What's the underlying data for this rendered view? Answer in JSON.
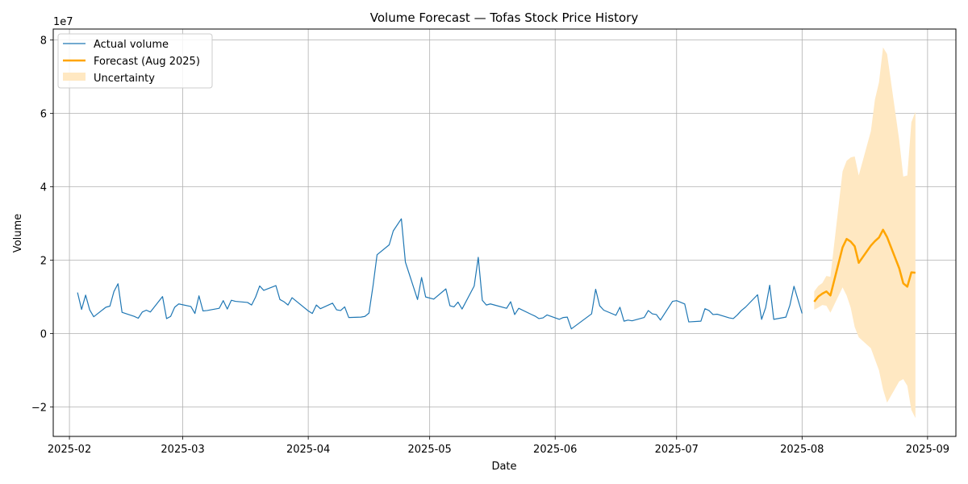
{
  "chart_data": {
    "type": "line",
    "title": "Volume Forecast — Tofas Stock Price History",
    "xlabel": "Date",
    "ylabel": "Volume",
    "y_multiplier_label": "1e7",
    "x_tick_labels": [
      "2025-02",
      "2025-03",
      "2025-04",
      "2025-05",
      "2025-06",
      "2025-07",
      "2025-08",
      "2025-09"
    ],
    "x_tick_dates": [
      "2025-02-01",
      "2025-03-01",
      "2025-04-01",
      "2025-05-01",
      "2025-06-01",
      "2025-07-01",
      "2025-08-01",
      "2025-09-01"
    ],
    "y_tick_labels": [
      "−2",
      "0",
      "2",
      "4",
      "6",
      "8"
    ],
    "y_tick_values": [
      -2,
      0,
      2,
      4,
      6,
      8
    ],
    "xlim": [
      "2025-01-28",
      "2025-09-08"
    ],
    "ylim": [
      -2.8,
      8.3
    ],
    "grid": true,
    "legend_position": "top-left",
    "series": [
      {
        "name": "Actual volume",
        "color": "#1f77b4",
        "points": [
          [
            "2025-02-03",
            1.12
          ],
          [
            "2025-02-04",
            0.66
          ],
          [
            "2025-02-05",
            1.05
          ],
          [
            "2025-02-06",
            0.65
          ],
          [
            "2025-02-07",
            0.46
          ],
          [
            "2025-02-10",
            0.72
          ],
          [
            "2025-02-11",
            0.75
          ],
          [
            "2025-02-12",
            1.15
          ],
          [
            "2025-02-13",
            1.36
          ],
          [
            "2025-02-14",
            0.58
          ],
          [
            "2025-02-17",
            0.47
          ],
          [
            "2025-02-18",
            0.42
          ],
          [
            "2025-02-19",
            0.59
          ],
          [
            "2025-02-20",
            0.64
          ],
          [
            "2025-02-21",
            0.59
          ],
          [
            "2025-02-24",
            1.01
          ],
          [
            "2025-02-25",
            0.41
          ],
          [
            "2025-02-26",
            0.47
          ],
          [
            "2025-02-27",
            0.72
          ],
          [
            "2025-02-28",
            0.81
          ],
          [
            "2025-03-03",
            0.74
          ],
          [
            "2025-03-04",
            0.55
          ],
          [
            "2025-03-05",
            1.03
          ],
          [
            "2025-03-06",
            0.62
          ],
          [
            "2025-03-07",
            0.63
          ],
          [
            "2025-03-10",
            0.69
          ],
          [
            "2025-03-11",
            0.9
          ],
          [
            "2025-03-12",
            0.67
          ],
          [
            "2025-03-13",
            0.91
          ],
          [
            "2025-03-14",
            0.88
          ],
          [
            "2025-03-17",
            0.85
          ],
          [
            "2025-03-18",
            0.78
          ],
          [
            "2025-03-19",
            1.0
          ],
          [
            "2025-03-20",
            1.3
          ],
          [
            "2025-03-21",
            1.18
          ],
          [
            "2025-03-24",
            1.31
          ],
          [
            "2025-03-25",
            0.93
          ],
          [
            "2025-03-26",
            0.87
          ],
          [
            "2025-03-27",
            0.78
          ],
          [
            "2025-03-28",
            0.98
          ],
          [
            "2025-04-01",
            0.62
          ],
          [
            "2025-04-02",
            0.55
          ],
          [
            "2025-04-03",
            0.78
          ],
          [
            "2025-04-04",
            0.68
          ],
          [
            "2025-04-07",
            0.83
          ],
          [
            "2025-04-08",
            0.65
          ],
          [
            "2025-04-09",
            0.63
          ],
          [
            "2025-04-10",
            0.73
          ],
          [
            "2025-04-11",
            0.44
          ],
          [
            "2025-04-14",
            0.45
          ],
          [
            "2025-04-15",
            0.47
          ],
          [
            "2025-04-16",
            0.56
          ],
          [
            "2025-04-17",
            1.3
          ],
          [
            "2025-04-18",
            2.15
          ],
          [
            "2025-04-21",
            2.42
          ],
          [
            "2025-04-22",
            2.8
          ],
          [
            "2025-04-24",
            3.13
          ],
          [
            "2025-04-25",
            1.95
          ],
          [
            "2025-04-28",
            0.93
          ],
          [
            "2025-04-29",
            1.53
          ],
          [
            "2025-04-30",
            1.0
          ],
          [
            "2025-05-02",
            0.94
          ],
          [
            "2025-05-05",
            1.22
          ],
          [
            "2025-05-06",
            0.76
          ],
          [
            "2025-05-07",
            0.73
          ],
          [
            "2025-05-08",
            0.86
          ],
          [
            "2025-05-09",
            0.67
          ],
          [
            "2025-05-12",
            1.3
          ],
          [
            "2025-05-13",
            2.08
          ],
          [
            "2025-05-14",
            0.91
          ],
          [
            "2025-05-15",
            0.78
          ],
          [
            "2025-05-16",
            0.81
          ],
          [
            "2025-05-20",
            0.69
          ],
          [
            "2025-05-21",
            0.87
          ],
          [
            "2025-05-22",
            0.52
          ],
          [
            "2025-05-23",
            0.69
          ],
          [
            "2025-05-26",
            0.53
          ],
          [
            "2025-05-27",
            0.48
          ],
          [
            "2025-05-28",
            0.41
          ],
          [
            "2025-05-29",
            0.43
          ],
          [
            "2025-05-30",
            0.51
          ],
          [
            "2025-06-02",
            0.39
          ],
          [
            "2025-06-03",
            0.44
          ],
          [
            "2025-06-04",
            0.45
          ],
          [
            "2025-06-05",
            0.13
          ],
          [
            "2025-06-10",
            0.54
          ],
          [
            "2025-06-11",
            1.21
          ],
          [
            "2025-06-12",
            0.76
          ],
          [
            "2025-06-13",
            0.64
          ],
          [
            "2025-06-16",
            0.5
          ],
          [
            "2025-06-17",
            0.72
          ],
          [
            "2025-06-18",
            0.34
          ],
          [
            "2025-06-19",
            0.37
          ],
          [
            "2025-06-20",
            0.35
          ],
          [
            "2025-06-23",
            0.44
          ],
          [
            "2025-06-24",
            0.63
          ],
          [
            "2025-06-25",
            0.54
          ],
          [
            "2025-06-26",
            0.52
          ],
          [
            "2025-06-27",
            0.37
          ],
          [
            "2025-06-30",
            0.88
          ],
          [
            "2025-07-01",
            0.9
          ],
          [
            "2025-07-03",
            0.81
          ],
          [
            "2025-07-04",
            0.32
          ],
          [
            "2025-07-07",
            0.34
          ],
          [
            "2025-07-08",
            0.68
          ],
          [
            "2025-07-09",
            0.63
          ],
          [
            "2025-07-10",
            0.52
          ],
          [
            "2025-07-11",
            0.53
          ],
          [
            "2025-07-14",
            0.43
          ],
          [
            "2025-07-15",
            0.41
          ],
          [
            "2025-07-16",
            0.51
          ],
          [
            "2025-07-17",
            0.63
          ],
          [
            "2025-07-18",
            0.72
          ],
          [
            "2025-07-21",
            1.06
          ],
          [
            "2025-07-22",
            0.39
          ],
          [
            "2025-07-23",
            0.71
          ],
          [
            "2025-07-24",
            1.32
          ],
          [
            "2025-07-25",
            0.39
          ],
          [
            "2025-07-28",
            0.45
          ],
          [
            "2025-07-29",
            0.78
          ],
          [
            "2025-07-30",
            1.29
          ],
          [
            "2025-08-01",
            0.55
          ]
        ]
      },
      {
        "name": "Forecast (Aug 2025)",
        "color": "#ffa500",
        "points": [
          [
            "2025-08-04",
            0.87
          ],
          [
            "2025-08-05",
            1.01
          ],
          [
            "2025-08-06",
            1.09
          ],
          [
            "2025-08-07",
            1.15
          ],
          [
            "2025-08-08",
            1.04
          ],
          [
            "2025-08-11",
            2.35
          ],
          [
            "2025-08-12",
            2.58
          ],
          [
            "2025-08-13",
            2.51
          ],
          [
            "2025-08-14",
            2.38
          ],
          [
            "2025-08-15",
            1.93
          ],
          [
            "2025-08-18",
            2.4
          ],
          [
            "2025-08-19",
            2.52
          ],
          [
            "2025-08-20",
            2.62
          ],
          [
            "2025-08-21",
            2.83
          ],
          [
            "2025-08-22",
            2.63
          ],
          [
            "2025-08-25",
            1.78
          ],
          [
            "2025-08-26",
            1.37
          ],
          [
            "2025-08-27",
            1.28
          ],
          [
            "2025-08-28",
            1.67
          ],
          [
            "2025-08-29",
            1.66
          ]
        ]
      }
    ],
    "uncertainty": {
      "name": "Uncertainty",
      "color": "#ffe8c2",
      "points": [
        [
          "2025-08-04",
          0.65,
          1.15
        ],
        [
          "2025-08-05",
          0.71,
          1.3
        ],
        [
          "2025-08-06",
          0.78,
          1.38
        ],
        [
          "2025-08-07",
          0.76,
          1.57
        ],
        [
          "2025-08-08",
          0.57,
          1.55
        ],
        [
          "2025-08-11",
          1.26,
          4.42
        ],
        [
          "2025-08-12",
          1.04,
          4.71
        ],
        [
          "2025-08-13",
          0.71,
          4.8
        ],
        [
          "2025-08-14",
          0.18,
          4.83
        ],
        [
          "2025-08-15",
          -0.1,
          4.31
        ],
        [
          "2025-08-18",
          -0.4,
          5.52
        ],
        [
          "2025-08-19",
          -0.7,
          6.38
        ],
        [
          "2025-08-20",
          -1.0,
          6.85
        ],
        [
          "2025-08-21",
          -1.52,
          7.8
        ],
        [
          "2025-08-22",
          -1.88,
          7.62
        ],
        [
          "2025-08-25",
          -1.3,
          5.27
        ],
        [
          "2025-08-26",
          -1.24,
          4.28
        ],
        [
          "2025-08-27",
          -1.42,
          4.31
        ],
        [
          "2025-08-28",
          -2.08,
          5.76
        ],
        [
          "2025-08-29",
          -2.3,
          6.05
        ]
      ]
    }
  }
}
